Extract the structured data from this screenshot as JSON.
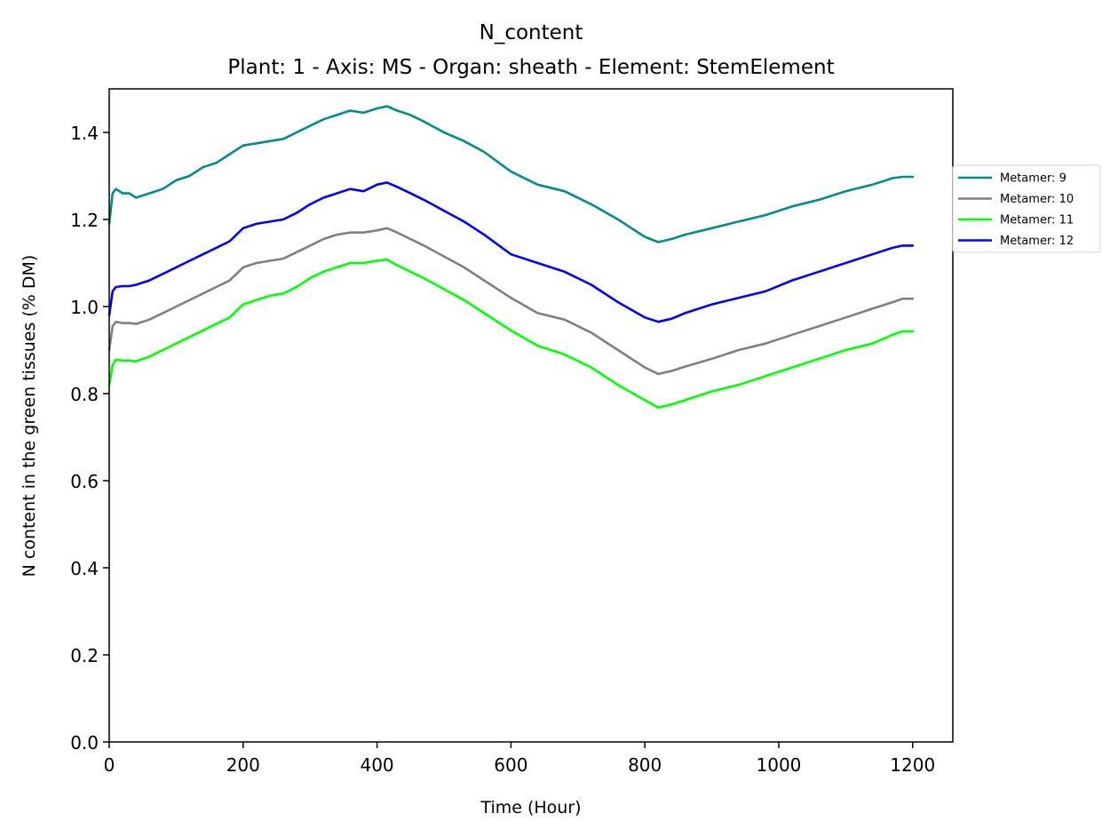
{
  "chart_data": {
    "type": "line",
    "title": "N_content",
    "subtitle": "Plant: 1 - Axis: MS - Organ: sheath - Element: StemElement",
    "xlabel": "Time (Hour)",
    "ylabel": "N content in the green tissues (% DM)",
    "xlim": [
      0,
      1260
    ],
    "ylim": [
      0,
      1.5
    ],
    "xticks": [
      0,
      200,
      400,
      600,
      800,
      1000,
      1200
    ],
    "xtick_labels": [
      "0",
      "200",
      "400",
      "600",
      "800",
      "1000",
      "1200"
    ],
    "yticks": [
      0,
      0.2,
      0.4,
      0.6,
      0.8,
      1.0,
      1.2,
      1.4
    ],
    "ytick_labels": [
      "0.0",
      "0.2",
      "0.4",
      "0.6",
      "0.8",
      "1.0",
      "1.2",
      "1.4"
    ],
    "grid": false,
    "legend_position": "outside-right",
    "x": [
      0,
      5,
      10,
      20,
      30,
      40,
      60,
      80,
      100,
      120,
      140,
      160,
      180,
      200,
      220,
      240,
      260,
      280,
      300,
      320,
      340,
      360,
      380,
      400,
      415,
      430,
      450,
      470,
      500,
      530,
      560,
      600,
      640,
      680,
      720,
      760,
      800,
      820,
      840,
      860,
      900,
      940,
      980,
      1020,
      1060,
      1100,
      1140,
      1170,
      1185,
      1200
    ],
    "series": [
      {
        "name": "Metamer: 9",
        "color": "#008b8b",
        "values": [
          1.19,
          1.26,
          1.27,
          1.26,
          1.26,
          1.25,
          1.26,
          1.27,
          1.29,
          1.3,
          1.32,
          1.33,
          1.35,
          1.37,
          1.375,
          1.38,
          1.385,
          1.4,
          1.415,
          1.43,
          1.44,
          1.45,
          1.445,
          1.455,
          1.46,
          1.45,
          1.44,
          1.425,
          1.4,
          1.38,
          1.355,
          1.31,
          1.28,
          1.265,
          1.235,
          1.2,
          1.16,
          1.148,
          1.155,
          1.165,
          1.18,
          1.195,
          1.21,
          1.23,
          1.245,
          1.265,
          1.28,
          1.295,
          1.298,
          1.298
        ]
      },
      {
        "name": "Metamer: 10",
        "color": "#808080",
        "values": [
          0.9,
          0.955,
          0.965,
          0.962,
          0.962,
          0.96,
          0.97,
          0.985,
          1.0,
          1.015,
          1.03,
          1.045,
          1.06,
          1.09,
          1.1,
          1.105,
          1.11,
          1.125,
          1.14,
          1.155,
          1.165,
          1.17,
          1.17,
          1.175,
          1.18,
          1.17,
          1.155,
          1.14,
          1.115,
          1.09,
          1.06,
          1.02,
          0.985,
          0.97,
          0.94,
          0.9,
          0.86,
          0.845,
          0.852,
          0.862,
          0.88,
          0.9,
          0.915,
          0.935,
          0.955,
          0.975,
          0.995,
          1.01,
          1.018,
          1.018
        ]
      },
      {
        "name": "Metamer: 11",
        "color": "#00ff00",
        "values": [
          0.82,
          0.865,
          0.878,
          0.876,
          0.876,
          0.874,
          0.885,
          0.9,
          0.915,
          0.93,
          0.945,
          0.96,
          0.975,
          1.005,
          1.015,
          1.025,
          1.03,
          1.045,
          1.065,
          1.08,
          1.09,
          1.1,
          1.1,
          1.105,
          1.108,
          1.095,
          1.08,
          1.065,
          1.04,
          1.015,
          0.985,
          0.945,
          0.91,
          0.89,
          0.86,
          0.82,
          0.785,
          0.768,
          0.775,
          0.785,
          0.805,
          0.82,
          0.84,
          0.86,
          0.88,
          0.9,
          0.915,
          0.935,
          0.943,
          0.943
        ]
      },
      {
        "name": "Metamer: 12",
        "color": "#0000ff",
        "values": [
          0.98,
          1.035,
          1.045,
          1.047,
          1.047,
          1.05,
          1.06,
          1.075,
          1.09,
          1.105,
          1.12,
          1.135,
          1.15,
          1.18,
          1.19,
          1.195,
          1.2,
          1.215,
          1.235,
          1.25,
          1.26,
          1.27,
          1.265,
          1.28,
          1.285,
          1.275,
          1.26,
          1.245,
          1.22,
          1.195,
          1.165,
          1.12,
          1.1,
          1.08,
          1.05,
          1.01,
          0.975,
          0.965,
          0.972,
          0.985,
          1.005,
          1.02,
          1.035,
          1.06,
          1.08,
          1.1,
          1.12,
          1.135,
          1.14,
          1.14
        ]
      }
    ]
  }
}
